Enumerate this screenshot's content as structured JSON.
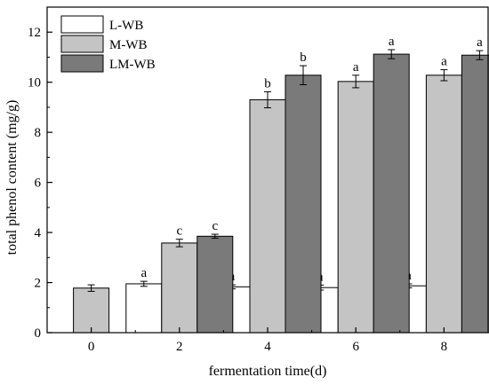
{
  "chart_data": {
    "type": "bar",
    "title": "",
    "xlabel": "fermentation time(d)",
    "ylabel": "total phenol content (mg/g)",
    "ylim": [
      0,
      13
    ],
    "yticks": [
      0,
      2,
      4,
      6,
      8,
      10,
      12
    ],
    "categories": [
      "0",
      "2",
      "4",
      "6",
      "8"
    ],
    "legend_position": "top-left",
    "grid": false,
    "series": [
      {
        "name": "L-WB",
        "color": "#ffffff",
        "values": [
          null,
          1.95,
          1.83,
          1.8,
          1.87
        ],
        "errors": [
          null,
          0.1,
          0.08,
          0.1,
          0.08
        ],
        "labels": [
          null,
          "a",
          "a",
          "a",
          "a"
        ]
      },
      {
        "name": "M-WB",
        "color": "#c4c4c4",
        "values": [
          1.78,
          3.58,
          9.3,
          10.03,
          10.28
        ],
        "errors": [
          0.13,
          0.15,
          0.32,
          0.25,
          0.22
        ],
        "labels": [
          null,
          "c",
          "b",
          "a",
          "a"
        ]
      },
      {
        "name": "LM-WB",
        "color": "#7a7a7a",
        "values": [
          null,
          3.85,
          10.28,
          11.12,
          11.08
        ],
        "errors": [
          null,
          0.08,
          0.38,
          0.18,
          0.18
        ],
        "labels": [
          null,
          "c",
          "b",
          "a",
          "a"
        ]
      }
    ]
  }
}
